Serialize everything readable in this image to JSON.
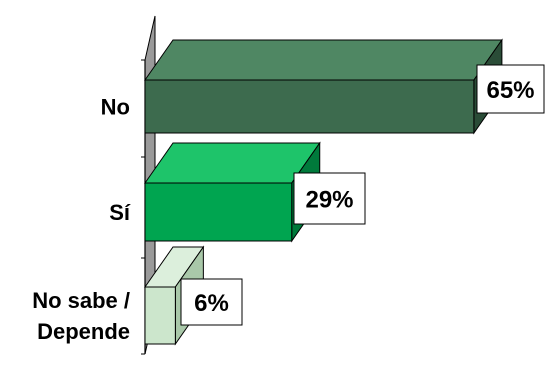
{
  "chart_data": {
    "type": "bar",
    "orientation": "horizontal",
    "style": "3d",
    "categories": [
      "No",
      "Sí",
      "No sabe / Depende"
    ],
    "category_lines": [
      [
        "No"
      ],
      [
        "Sí"
      ],
      [
        "No sabe /",
        "Depende"
      ]
    ],
    "values": [
      65,
      29,
      6
    ],
    "data_labels": [
      "65%",
      "29%",
      "6%"
    ],
    "unit": "%",
    "xlim": [
      0,
      70
    ],
    "title": "",
    "xlabel": "",
    "ylabel": "",
    "grid": false,
    "legend": "none",
    "colors": {
      "bars": [
        "#3d6b4e",
        "#00a550",
        "#cce6cc"
      ],
      "bar_tops": [
        "#4f8763",
        "#1ec46a",
        "#dcefdc"
      ],
      "bar_sides": [
        "#2a4c37",
        "#007a3b",
        "#a9c8a9"
      ],
      "wall": "#9a9a9a",
      "label_box_fill": "#ffffff",
      "label_box_stroke": "#000000",
      "text": "#000000"
    }
  }
}
